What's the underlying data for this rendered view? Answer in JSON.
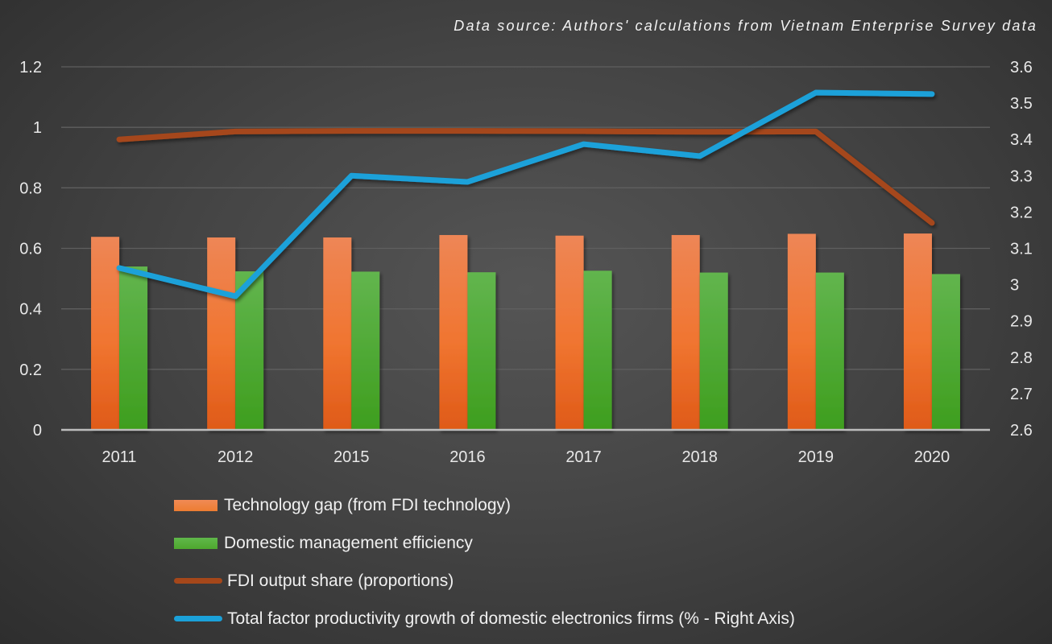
{
  "source_note": "Data source: Authors' calculations from Vietnam Enterprise Survey data",
  "colors": {
    "technology_gap": "#ED7D31",
    "management_efficiency": "#4EA72E",
    "fdi_share": "#A5471A",
    "tfp_growth": "#1BA1D9",
    "grid": "#5f5f5f",
    "axis_text": "#e8e8e8"
  },
  "legend": [
    {
      "label": "Technology gap  (from FDI technology)",
      "type": "bar",
      "color": "#ED7D31"
    },
    {
      "label": "Domestic management efficiency",
      "type": "bar",
      "color": "#4EA72E"
    },
    {
      "label": " FDI output share  (proportions)",
      "type": "line",
      "color": "#A5471A"
    },
    {
      "label": "Total factor productivity growth of domestic electronics firms (% - Right Axis)",
      "type": "line",
      "color": "#1BA1D9"
    }
  ],
  "chart_data": {
    "type": "bar",
    "title": "",
    "subtitle": "Data source: Authors' calculations from Vietnam Enterprise Survey data",
    "xlabel": "",
    "ylabel": "",
    "categories": [
      "2011",
      "2012",
      "2015",
      "2016",
      "2017",
      "2018",
      "2019",
      "2020"
    ],
    "series": [
      {
        "name": "Technology gap  (from FDI technology)",
        "type": "bar",
        "axis": "left",
        "values": [
          0.638,
          0.636,
          0.636,
          0.644,
          0.642,
          0.644,
          0.648,
          0.649
        ]
      },
      {
        "name": "Domestic management efficiency",
        "type": "bar",
        "axis": "left",
        "values": [
          0.54,
          0.524,
          0.523,
          0.521,
          0.526,
          0.52,
          0.52,
          0.515
        ]
      },
      {
        "name": "FDI output share  (proportions)",
        "type": "line",
        "axis": "left",
        "values": [
          0.96,
          0.986,
          0.988,
          0.988,
          0.987,
          0.985,
          0.986,
          0.684
        ]
      },
      {
        "name": "Total factor productivity growth of domestic electronics firms (% - Right Axis)",
        "type": "line",
        "axis": "right",
        "values": [
          3.046,
          2.968,
          3.3,
          3.283,
          3.387,
          3.354,
          3.529,
          3.525
        ]
      }
    ],
    "y_left": {
      "ylim": [
        0,
        1.2
      ],
      "ticks": [
        "0",
        "0.2",
        "0.4",
        "0.6",
        "0.8",
        "1",
        "1.2"
      ]
    },
    "y_right": {
      "ylim": [
        2.6,
        3.6
      ],
      "ticks": [
        "2.6",
        "2.7",
        "2.8",
        "2.9",
        "3",
        "3.1",
        "3.2",
        "3.3",
        "3.4",
        "3.5",
        "3.6"
      ]
    },
    "grid": true,
    "legend_position": "bottom"
  }
}
